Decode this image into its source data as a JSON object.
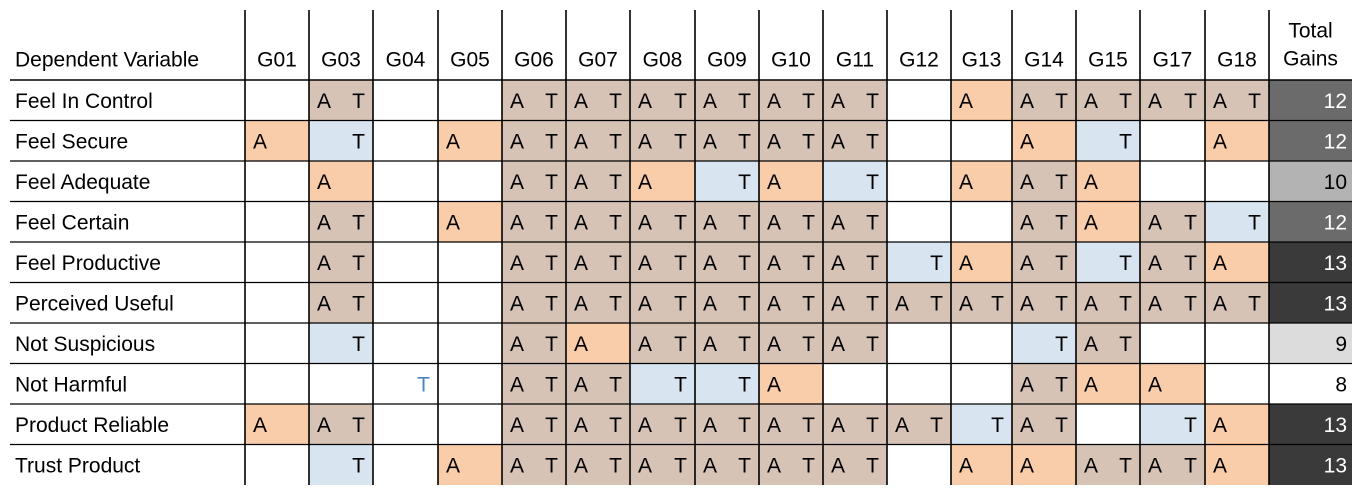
{
  "chart_data": {
    "type": "table",
    "title": "",
    "row_header": "Dependent Variable",
    "columns": [
      "G01",
      "G03",
      "G04",
      "G05",
      "G06",
      "G07",
      "G08",
      "G09",
      "G10",
      "G11",
      "G12",
      "G13",
      "G14",
      "G15",
      "G17",
      "G18"
    ],
    "total_header": [
      "Total",
      "Gains"
    ],
    "legend_codes": {
      "A": "A",
      "T": "T",
      "AT": "A and T"
    },
    "colors": {
      "A": "#f9cda9",
      "T": "#d8e4f0",
      "AT": "#d6c3b6",
      "faded_T_text": "#4a86c5"
    },
    "rows": [
      {
        "label": "Feel In Control",
        "cells": [
          "",
          "AT",
          "",
          "",
          "AT",
          "AT",
          "AT",
          "AT",
          "AT",
          "AT",
          "",
          "A",
          "AT",
          "AT",
          "AT",
          "AT"
        ],
        "total": "12",
        "total_color": "#6b6b6b"
      },
      {
        "label": "Feel Secure",
        "cells": [
          "A",
          "T",
          "",
          "A",
          "AT",
          "AT",
          "AT",
          "AT",
          "AT",
          "AT",
          "",
          "",
          "A",
          "T",
          "",
          "A"
        ],
        "total": "12",
        "total_color": "#6b6b6b"
      },
      {
        "label": "Feel Adequate",
        "cells": [
          "",
          "A",
          "",
          "",
          "AT",
          "AT",
          "A",
          "T",
          "A",
          "T",
          "",
          "A",
          "AT",
          "A",
          "",
          ""
        ],
        "total": "10",
        "total_color": "#b3b3b3"
      },
      {
        "label": "Feel Certain",
        "cells": [
          "",
          "AT",
          "",
          "A",
          "AT",
          "AT",
          "AT",
          "AT",
          "AT",
          "AT",
          "",
          "",
          "AT",
          "A",
          "AT",
          "T"
        ],
        "total": "12",
        "total_color": "#6b6b6b"
      },
      {
        "label": "Feel Productive",
        "cells": [
          "",
          "AT",
          "",
          "",
          "AT",
          "AT",
          "AT",
          "AT",
          "AT",
          "AT",
          "T",
          "A",
          "AT",
          "T",
          "AT",
          "A"
        ],
        "total": "13",
        "total_color": "#3a3a3a"
      },
      {
        "label": "Perceived Useful",
        "cells": [
          "",
          "AT",
          "",
          "",
          "AT",
          "AT",
          "AT",
          "AT",
          "AT",
          "AT",
          "AT",
          "AT",
          "AT",
          "AT",
          "AT",
          "AT"
        ],
        "total": "13",
        "total_color": "#3a3a3a"
      },
      {
        "label": "Not Suspicious",
        "cells": [
          "",
          "T",
          "",
          "",
          "AT",
          "A",
          "AT",
          "AT",
          "AT",
          "AT",
          "",
          "",
          "T",
          "AT",
          "",
          ""
        ],
        "total": "9",
        "total_color": "#dcdcdc"
      },
      {
        "label": "Not Harmful",
        "cells": [
          "",
          "",
          "t",
          "",
          "AT",
          "AT",
          "T",
          "T",
          "A",
          "",
          "",
          "",
          "AT",
          "A",
          "A",
          ""
        ],
        "total": "8",
        "total_color": "#ffffff"
      },
      {
        "label": "Product Reliable",
        "cells": [
          "A",
          "AT",
          "",
          "",
          "AT",
          "AT",
          "AT",
          "AT",
          "AT",
          "AT",
          "AT",
          "T",
          "AT",
          "",
          "T",
          "A"
        ],
        "total": "13",
        "total_color": "#3a3a3a"
      },
      {
        "label": "Trust Product",
        "cells": [
          "",
          "T",
          "",
          "A",
          "AT",
          "AT",
          "AT",
          "AT",
          "AT",
          "AT",
          "",
          "A",
          "A",
          "AT",
          "AT",
          "A"
        ],
        "total": "13",
        "total_color": "#3a3a3a"
      }
    ]
  }
}
